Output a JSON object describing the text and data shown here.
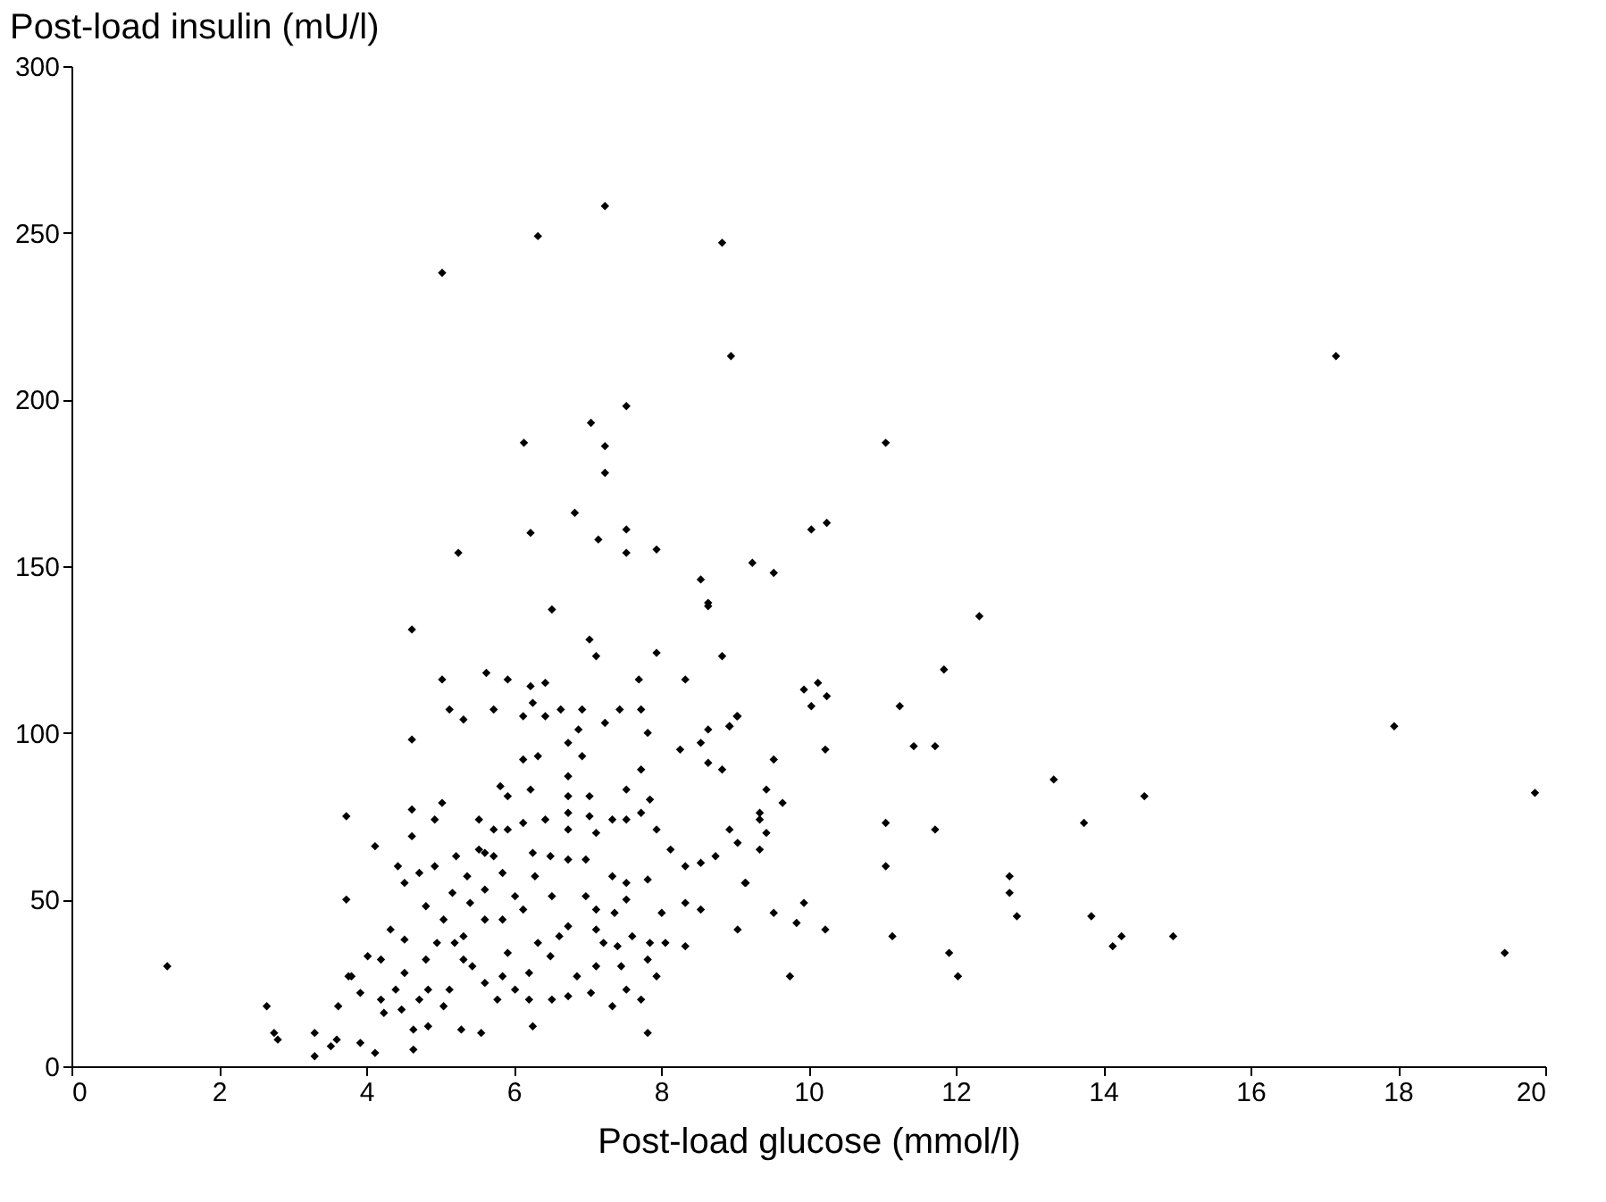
{
  "chart_data": {
    "type": "scatter",
    "xlabel": "Post-load glucose (mmol/l)",
    "ylabel": "Post-load insulin (mU/l)",
    "xlim": [
      0,
      20
    ],
    "xticks": [
      0,
      2,
      4,
      6,
      8,
      10,
      12,
      14,
      16,
      18,
      20
    ],
    "ylim": [
      0,
      300
    ],
    "yticks": [
      0,
      50,
      100,
      150,
      200,
      250,
      300
    ],
    "grid": false,
    "marker": "diamond",
    "series": [
      {
        "color": "#000000",
        "x": [
          1.3,
          2.65,
          2.75,
          2.8,
          3.3,
          3.3,
          3.6,
          3.8,
          7.24,
          6.33,
          5.03,
          8.83,
          8.95,
          7.53,
          7.05,
          6.14,
          7.24,
          7.24,
          6.83,
          6.23,
          7.15,
          7.53,
          7.53,
          7.94,
          5.25,
          8.54,
          9.24,
          8.64,
          9.53,
          10.04,
          10.25,
          11.05,
          17.16,
          12.32,
          11.84,
          11.24,
          11.43,
          11.72,
          11.05,
          11.72,
          11.05,
          11.14,
          11.91,
          12.03,
          12.73,
          12.73,
          12.83,
          13.33,
          13.74,
          13.84,
          14.13,
          14.25,
          14.56,
          14.95,
          17.95,
          19.86,
          19.45,
          9.94,
          10.13,
          10.25,
          10.04,
          10.23,
          9.53,
          9.43,
          9.65,
          9.34,
          9.34,
          9.43,
          8.93,
          9.04,
          9.34,
          9.14,
          9.53,
          9.94,
          9.84,
          10.23,
          9.04,
          9.75,
          8.93,
          9.04,
          8.83,
          6.52,
          4.62,
          5.03,
          5.63,
          5.92,
          6.23,
          6.43,
          7.03,
          7.12,
          8.64,
          8.83,
          7.94,
          7.7,
          5.13,
          5.32,
          5.73,
          4.62,
          6.13,
          6.26,
          6.43,
          6.64,
          6.93,
          6.88,
          7.24,
          7.44,
          7.73,
          7.82,
          8.33,
          8.26,
          8.54,
          8.93,
          9.03,
          6.13,
          6.33,
          6.74,
          6.93,
          5.82,
          5.92,
          6.23,
          6.74,
          6.74,
          7.03,
          7.53,
          7.73,
          7.85,
          8.64,
          8.64,
          3.73,
          4.62,
          4.93,
          5.03,
          4.62,
          4.12,
          4.43,
          4.52,
          4.72,
          4.93,
          5.22,
          5.53,
          5.73,
          5.53,
          5.73,
          5.92,
          6.13,
          6.43,
          6.74,
          6.74,
          7.03,
          7.12,
          7.34,
          7.53,
          7.73,
          7.94,
          8.13,
          8.33,
          8.54,
          8.74,
          9.15,
          3.73,
          4.33,
          4.52,
          4.02,
          3.76,
          3.62,
          3.92,
          4.12,
          3.52,
          4.2,
          3.92,
          4.24,
          4.48,
          4.52,
          4.72,
          4.84,
          4.64,
          4.84,
          4.64,
          5.05,
          5.13,
          5.29,
          5.56,
          5.32,
          5.2,
          5.32,
          5.44,
          5.61,
          5.78,
          5.85,
          6.02,
          5.92,
          5.61,
          5.41,
          5.61,
          5.85,
          6.02,
          6.13,
          6.29,
          6.52,
          6.33,
          6.5,
          6.21,
          6.26,
          6.21,
          6.52,
          6.74,
          6.86,
          6.62,
          6.74,
          6.98,
          7.12,
          7.12,
          7.22,
          7.41,
          7.12,
          7.34,
          7.05,
          7.46,
          7.53,
          7.73,
          7.82,
          7.61,
          7.82,
          7.94,
          7.85,
          8.06,
          8.33,
          8.01,
          8.33,
          8.54,
          7.34,
          7.53,
          7.82,
          7.53,
          7.37,
          6.98,
          6.74,
          6.5,
          6.26,
          5.85,
          5.61,
          5.37,
          5.17,
          4.81,
          5.05,
          4.96,
          4.81,
          4.4,
          4.2
        ],
        "values": [
          30,
          18,
          10,
          8,
          10,
          3,
          8,
          27,
          258,
          249,
          238,
          247,
          213,
          198,
          193,
          187,
          186,
          178,
          166,
          160,
          158,
          161,
          154,
          155,
          154,
          146,
          151,
          139,
          148,
          161,
          163,
          187,
          213,
          135,
          119,
          108,
          96,
          96,
          73,
          71,
          60,
          39,
          34,
          27,
          57,
          52,
          45,
          86,
          73,
          45,
          36,
          39,
          81,
          39,
          102,
          82,
          34,
          113,
          115,
          111,
          108,
          95,
          92,
          83,
          79,
          76,
          74,
          70,
          71,
          67,
          65,
          55,
          46,
          49,
          43,
          41,
          41,
          27,
          102,
          105,
          89,
          137,
          131,
          116,
          118,
          116,
          114,
          115,
          128,
          123,
          138,
          123,
          124,
          116,
          107,
          104,
          107,
          98,
          105,
          109,
          105,
          107,
          107,
          101,
          103,
          107,
          107,
          100,
          116,
          95,
          97,
          102,
          105,
          92,
          93,
          97,
          93,
          84,
          81,
          83,
          87,
          81,
          81,
          83,
          89,
          80,
          91,
          101,
          75,
          77,
          74,
          79,
          69,
          66,
          60,
          55,
          58,
          60,
          63,
          74,
          71,
          65,
          63,
          71,
          73,
          74,
          71,
          76,
          75,
          70,
          74,
          74,
          76,
          71,
          65,
          60,
          61,
          63,
          55,
          50,
          41,
          38,
          33,
          27,
          18,
          7,
          4,
          6,
          32,
          22,
          16,
          17,
          28,
          20,
          23,
          11,
          12,
          5,
          18,
          23,
          11,
          10,
          32,
          37,
          39,
          30,
          25,
          20,
          27,
          23,
          34,
          44,
          49,
          53,
          44,
          51,
          47,
          57,
          51,
          37,
          33,
          28,
          12,
          20,
          20,
          21,
          27,
          39,
          42,
          51,
          47,
          41,
          37,
          36,
          30,
          18,
          22,
          30,
          23,
          20,
          10,
          39,
          32,
          27,
          37,
          37,
          36,
          46,
          49,
          47,
          57,
          55,
          56,
          50,
          46,
          62,
          62,
          63,
          64,
          58,
          64,
          57,
          52,
          48,
          44,
          37,
          32,
          23,
          20
        ]
      }
    ]
  }
}
